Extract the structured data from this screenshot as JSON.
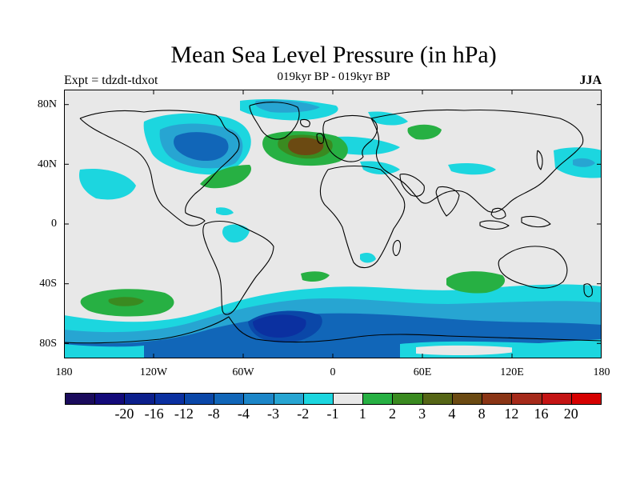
{
  "title": "Mean Sea Level Pressure (in hPa)",
  "left_label": "Expt = tdzdt-tdxot",
  "center_label": "019kyr BP - 019kyr BP",
  "right_label": "JJA",
  "lat_labels": [
    "80N",
    "40N",
    "0",
    "40S",
    "80S"
  ],
  "lon_labels": [
    "180",
    "120W",
    "60W",
    "0",
    "60E",
    "120E",
    "180"
  ],
  "colorbar": {
    "colors": [
      "#1a0b5c",
      "#130a7a",
      "#0c1f8c",
      "#0b30a0",
      "#0a47a8",
      "#1166b8",
      "#1c86c8",
      "#27a5d2",
      "#1cd6df",
      "#e8e8e8",
      "#27b043",
      "#3a8a20",
      "#556516",
      "#6b4a12",
      "#8a3515",
      "#a52a1a",
      "#c41414",
      "#d60000"
    ],
    "labels": [
      "-20",
      "-16",
      "-12",
      "-8",
      "-4",
      "-3",
      "-2",
      "-1",
      "1",
      "2",
      "3",
      "4",
      "8",
      "12",
      "16",
      "20"
    ]
  },
  "map": {
    "background": "#e8e8e8",
    "fill_colors": {
      "light_cyan": "#1cd6df",
      "cyan": "#27a5d2",
      "blue": "#1166b8",
      "dark_blue": "#0a47a8",
      "green": "#27b043",
      "olive": "#3a8a20",
      "brown": "#6b4a12"
    }
  }
}
